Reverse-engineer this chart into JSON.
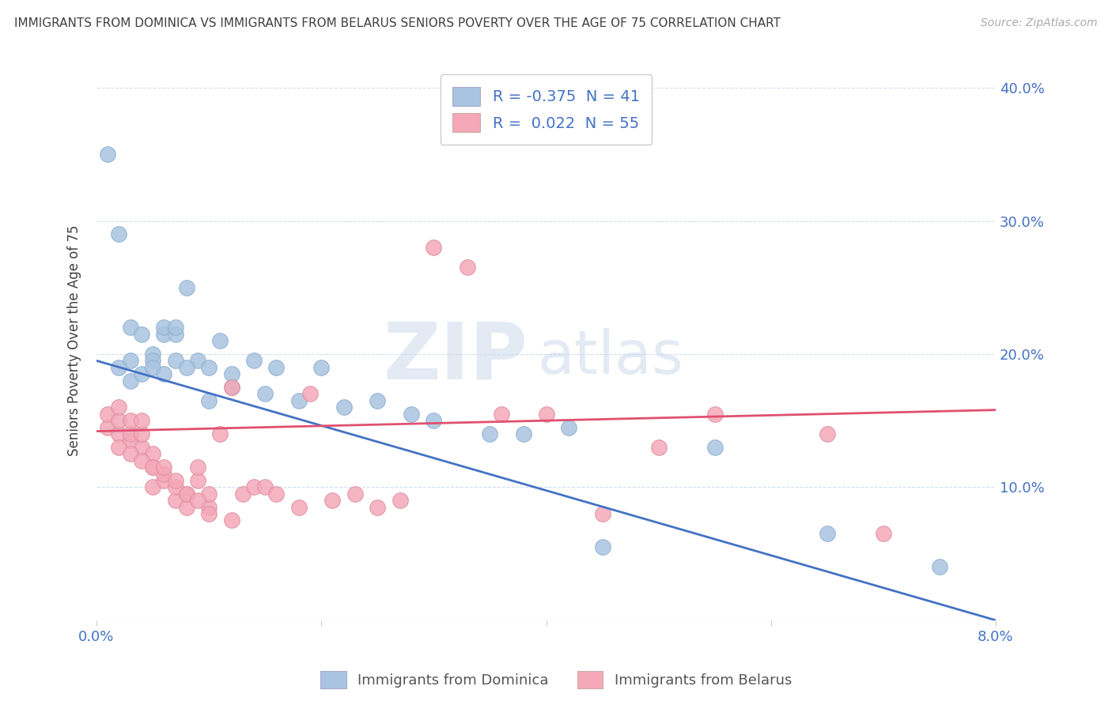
{
  "title": "IMMIGRANTS FROM DOMINICA VS IMMIGRANTS FROM BELARUS SENIORS POVERTY OVER THE AGE OF 75 CORRELATION CHART",
  "source": "Source: ZipAtlas.com",
  "ylabel": "Seniors Poverty Over the Age of 75",
  "x_min": 0.0,
  "x_max": 0.08,
  "y_min": 0.0,
  "y_max": 0.42,
  "y_ticks": [
    0.0,
    0.1,
    0.2,
    0.3,
    0.4
  ],
  "dominica_R": -0.375,
  "dominica_N": 41,
  "belarus_R": 0.022,
  "belarus_N": 55,
  "dominica_color": "#a8c4e0",
  "belarus_color": "#f4a8b8",
  "dominica_line_color": "#4472c4",
  "belarus_line_color": "#e05070",
  "watermark_zip": "ZIP",
  "watermark_atlas": "atlas",
  "background_color": "#ffffff",
  "grid_color": "#c8d8e8",
  "title_color": "#404040",
  "axis_color": "#4472c4",
  "dom_line_x0": 0.0,
  "dom_line_y0": 0.195,
  "dom_line_x1": 0.08,
  "dom_line_y1": 0.0,
  "bel_line_x0": 0.0,
  "bel_line_y0": 0.142,
  "bel_line_x1": 0.08,
  "bel_line_y1": 0.158,
  "dominica_x": [
    0.001,
    0.002,
    0.003,
    0.003,
    0.004,
    0.005,
    0.005,
    0.006,
    0.006,
    0.007,
    0.007,
    0.008,
    0.009,
    0.01,
    0.011,
    0.012,
    0.014,
    0.016,
    0.02,
    0.025,
    0.03,
    0.038,
    0.042,
    0.055,
    0.065,
    0.075,
    0.002,
    0.003,
    0.004,
    0.005,
    0.006,
    0.007,
    0.008,
    0.01,
    0.012,
    0.015,
    0.018,
    0.022,
    0.028,
    0.035,
    0.045
  ],
  "dominica_y": [
    0.35,
    0.29,
    0.22,
    0.195,
    0.215,
    0.2,
    0.195,
    0.215,
    0.22,
    0.215,
    0.22,
    0.25,
    0.195,
    0.19,
    0.21,
    0.185,
    0.195,
    0.19,
    0.19,
    0.165,
    0.15,
    0.14,
    0.145,
    0.13,
    0.065,
    0.04,
    0.19,
    0.18,
    0.185,
    0.19,
    0.185,
    0.195,
    0.19,
    0.165,
    0.175,
    0.17,
    0.165,
    0.16,
    0.155,
    0.14,
    0.055
  ],
  "belarus_x": [
    0.001,
    0.001,
    0.002,
    0.002,
    0.002,
    0.003,
    0.003,
    0.003,
    0.004,
    0.004,
    0.004,
    0.005,
    0.005,
    0.005,
    0.006,
    0.006,
    0.007,
    0.007,
    0.008,
    0.008,
    0.009,
    0.009,
    0.01,
    0.01,
    0.011,
    0.012,
    0.013,
    0.014,
    0.015,
    0.016,
    0.018,
    0.019,
    0.021,
    0.023,
    0.025,
    0.027,
    0.03,
    0.033,
    0.036,
    0.04,
    0.045,
    0.05,
    0.055,
    0.065,
    0.07,
    0.002,
    0.003,
    0.004,
    0.005,
    0.006,
    0.007,
    0.008,
    0.009,
    0.01,
    0.012
  ],
  "belarus_y": [
    0.145,
    0.155,
    0.14,
    0.15,
    0.16,
    0.135,
    0.14,
    0.15,
    0.13,
    0.14,
    0.15,
    0.1,
    0.115,
    0.125,
    0.105,
    0.11,
    0.09,
    0.1,
    0.085,
    0.095,
    0.105,
    0.115,
    0.085,
    0.095,
    0.14,
    0.175,
    0.095,
    0.1,
    0.1,
    0.095,
    0.085,
    0.17,
    0.09,
    0.095,
    0.085,
    0.09,
    0.28,
    0.265,
    0.155,
    0.155,
    0.08,
    0.13,
    0.155,
    0.14,
    0.065,
    0.13,
    0.125,
    0.12,
    0.115,
    0.115,
    0.105,
    0.095,
    0.09,
    0.08,
    0.075
  ]
}
